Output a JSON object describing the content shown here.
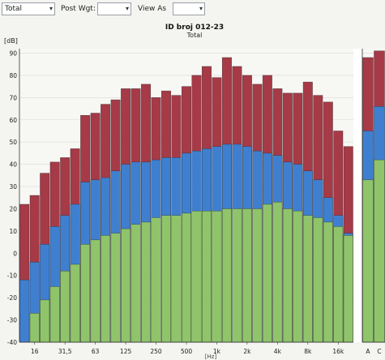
{
  "toolbar": {
    "filter_value": "Total",
    "post_weight_label": "Post Wgt:",
    "post_weight_value": "",
    "view_as_label": "View As",
    "view_as_value": ""
  },
  "chart_data": {
    "type": "bar",
    "title": "ID broj 012-23",
    "subtitle": "Total",
    "ylabel": "[dB]",
    "xlabel": "[Hz]",
    "ylim": [
      -40,
      92
    ],
    "yticks": [
      -40,
      -30,
      -20,
      -10,
      0,
      10,
      20,
      30,
      40,
      50,
      60,
      70,
      80,
      90
    ],
    "grid": true,
    "stacked_overlap": true,
    "colors": {
      "red": "#a63a47",
      "blue": "#3f7fd0",
      "green": "#8fc46b"
    },
    "categories": [
      "12.5",
      "16",
      "20",
      "25",
      "31.5",
      "40",
      "50",
      "63",
      "80",
      "100",
      "125",
      "160",
      "200",
      "250",
      "315",
      "400",
      "500",
      "630",
      "800",
      "1k",
      "1.25k",
      "1.6k",
      "2k",
      "2.5k",
      "3.15k",
      "4k",
      "5k",
      "6.3k",
      "8k",
      "10k",
      "12.5k",
      "16k",
      "20k"
    ],
    "x_tick_labels": [
      "16",
      "31,5",
      "63",
      "125",
      "250",
      "500",
      "1k",
      "2k",
      "4k",
      "8k",
      "16k"
    ],
    "series": [
      {
        "values": [
          22,
          26,
          36,
          41,
          43,
          47,
          62,
          63,
          67,
          69,
          74,
          74,
          76,
          70,
          73,
          71,
          75,
          80,
          84,
          79,
          88,
          84,
          80,
          76,
          80,
          74,
          72,
          72,
          77,
          71,
          68,
          55,
          48
        ]
      },
      {
        "values": [
          -12,
          -4,
          4,
          12,
          17,
          22,
          32,
          33,
          34,
          37,
          40,
          41,
          41,
          42,
          43,
          43,
          45,
          46,
          47,
          48,
          49,
          49,
          48,
          46,
          45,
          44,
          41,
          40,
          37,
          33,
          25,
          17,
          9
        ]
      },
      {
        "values": [
          -40,
          -27,
          -21,
          -15,
          -8,
          -5,
          4,
          6,
          8,
          9,
          11,
          13,
          14,
          16,
          17,
          17,
          18,
          19,
          19,
          19,
          20,
          20,
          20,
          20,
          22,
          23,
          20,
          19,
          17,
          16,
          14,
          12,
          8
        ]
      }
    ],
    "summary": {
      "categories": [
        "A",
        "C"
      ],
      "series": [
        {
          "values": [
            88,
            91
          ]
        },
        {
          "values": [
            55,
            66
          ]
        },
        {
          "values": [
            33,
            42
          ]
        }
      ]
    }
  }
}
